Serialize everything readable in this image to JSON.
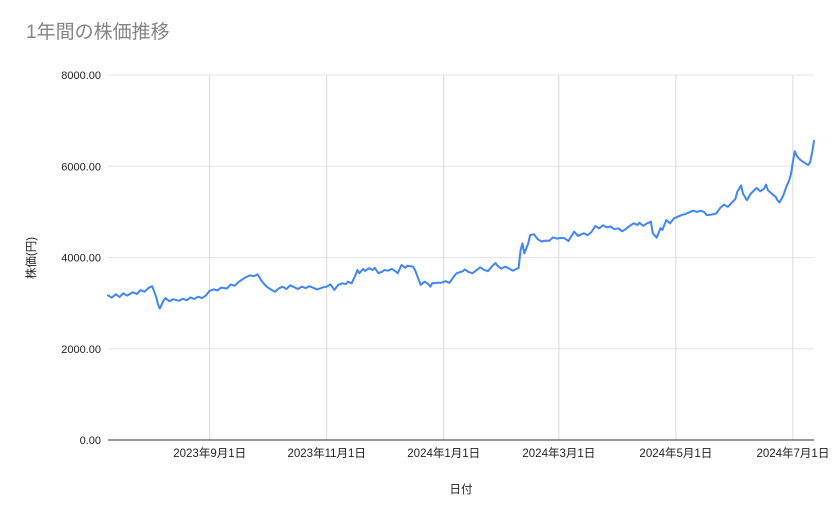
{
  "chart_data": {
    "type": "line",
    "title": "1年間の株価推移",
    "xlabel": "日付",
    "ylabel": "株価(円)",
    "legend": "none",
    "grid": "on",
    "x_domain": [
      0,
      368
    ],
    "y_domain": [
      0,
      8000
    ],
    "x_ticks": [
      {
        "d": 53,
        "label": "2023年9月1日"
      },
      {
        "d": 114,
        "label": "2023年11月1日"
      },
      {
        "d": 175,
        "label": "2024年1月1日"
      },
      {
        "d": 235,
        "label": "2024年3月1日"
      },
      {
        "d": 296,
        "label": "2024年5月1日"
      },
      {
        "d": 357,
        "label": "2024年7月1日"
      }
    ],
    "y_ticks": [
      {
        "v": 0,
        "label": "0.00"
      },
      {
        "v": 2000,
        "label": "2000.00"
      },
      {
        "v": 4000,
        "label": "4000.00"
      },
      {
        "v": 6000,
        "label": "6000.00"
      },
      {
        "v": 8000,
        "label": "8000.00"
      }
    ],
    "colors": {
      "line": "#4285f4",
      "grid": "#e6e6e6",
      "grid_vertical": "#dadada",
      "axis": "#333333",
      "tick_text": "#222222",
      "title_text": "#848484"
    },
    "points": [
      [
        0,
        3170
      ],
      [
        2,
        3120
      ],
      [
        4,
        3195
      ],
      [
        6,
        3135
      ],
      [
        8,
        3215
      ],
      [
        10,
        3165
      ],
      [
        13,
        3240
      ],
      [
        15,
        3200
      ],
      [
        17,
        3285
      ],
      [
        19,
        3250
      ],
      [
        21,
        3330
      ],
      [
        23,
        3370
      ],
      [
        25,
        3150
      ],
      [
        26,
        2980
      ],
      [
        27,
        2880
      ],
      [
        29,
        3060
      ],
      [
        30,
        3110
      ],
      [
        32,
        3040
      ],
      [
        34,
        3085
      ],
      [
        37,
        3050
      ],
      [
        39,
        3095
      ],
      [
        41,
        3065
      ],
      [
        43,
        3125
      ],
      [
        45,
        3090
      ],
      [
        47,
        3140
      ],
      [
        49,
        3110
      ],
      [
        51,
        3165
      ],
      [
        53,
        3270
      ],
      [
        55,
        3300
      ],
      [
        57,
        3280
      ],
      [
        59,
        3340
      ],
      [
        62,
        3320
      ],
      [
        64,
        3410
      ],
      [
        66,
        3380
      ],
      [
        68,
        3460
      ],
      [
        70,
        3520
      ],
      [
        72,
        3570
      ],
      [
        74,
        3610
      ],
      [
        76,
        3590
      ],
      [
        78,
        3630
      ],
      [
        80,
        3490
      ],
      [
        82,
        3390
      ],
      [
        84,
        3320
      ],
      [
        87,
        3250
      ],
      [
        89,
        3320
      ],
      [
        91,
        3360
      ],
      [
        93,
        3310
      ],
      [
        95,
        3390
      ],
      [
        97,
        3350
      ],
      [
        99,
        3310
      ],
      [
        101,
        3360
      ],
      [
        103,
        3330
      ],
      [
        105,
        3370
      ],
      [
        107,
        3335
      ],
      [
        109,
        3300
      ],
      [
        112,
        3345
      ],
      [
        114,
        3360
      ],
      [
        116,
        3410
      ],
      [
        118,
        3290
      ],
      [
        120,
        3400
      ],
      [
        122,
        3435
      ],
      [
        124,
        3415
      ],
      [
        125,
        3470
      ],
      [
        127,
        3435
      ],
      [
        129,
        3615
      ],
      [
        130,
        3725
      ],
      [
        131,
        3655
      ],
      [
        133,
        3750
      ],
      [
        134,
        3705
      ],
      [
        136,
        3765
      ],
      [
        138,
        3725
      ],
      [
        139,
        3775
      ],
      [
        141,
        3655
      ],
      [
        143,
        3690
      ],
      [
        144,
        3725
      ],
      [
        146,
        3710
      ],
      [
        148,
        3750
      ],
      [
        150,
        3690
      ],
      [
        151,
        3655
      ],
      [
        153,
        3835
      ],
      [
        155,
        3775
      ],
      [
        156,
        3820
      ],
      [
        159,
        3800
      ],
      [
        160,
        3725
      ],
      [
        162,
        3510
      ],
      [
        163,
        3400
      ],
      [
        165,
        3470
      ],
      [
        167,
        3415
      ],
      [
        168,
        3360
      ],
      [
        169,
        3435
      ],
      [
        172,
        3445
      ],
      [
        174,
        3450
      ],
      [
        176,
        3480
      ],
      [
        178,
        3445
      ],
      [
        181,
        3620
      ],
      [
        182,
        3660
      ],
      [
        185,
        3700
      ],
      [
        186,
        3740
      ],
      [
        188,
        3680
      ],
      [
        190,
        3655
      ],
      [
        192,
        3720
      ],
      [
        194,
        3785
      ],
      [
        196,
        3730
      ],
      [
        198,
        3700
      ],
      [
        200,
        3800
      ],
      [
        202,
        3880
      ],
      [
        203,
        3820
      ],
      [
        205,
        3755
      ],
      [
        207,
        3800
      ],
      [
        209,
        3760
      ],
      [
        211,
        3710
      ],
      [
        213,
        3750
      ],
      [
        214,
        3770
      ],
      [
        215,
        4150
      ],
      [
        216,
        4310
      ],
      [
        217,
        4090
      ],
      [
        219,
        4300
      ],
      [
        220,
        4490
      ],
      [
        222,
        4510
      ],
      [
        224,
        4400
      ],
      [
        226,
        4350
      ],
      [
        228,
        4370
      ],
      [
        230,
        4365
      ],
      [
        232,
        4440
      ],
      [
        234,
        4415
      ],
      [
        236,
        4430
      ],
      [
        238,
        4420
      ],
      [
        240,
        4360
      ],
      [
        242,
        4500
      ],
      [
        243,
        4565
      ],
      [
        245,
        4475
      ],
      [
        248,
        4530
      ],
      [
        250,
        4490
      ],
      [
        252,
        4560
      ],
      [
        254,
        4690
      ],
      [
        256,
        4640
      ],
      [
        258,
        4705
      ],
      [
        260,
        4660
      ],
      [
        262,
        4680
      ],
      [
        264,
        4620
      ],
      [
        266,
        4640
      ],
      [
        268,
        4575
      ],
      [
        270,
        4630
      ],
      [
        272,
        4695
      ],
      [
        274,
        4750
      ],
      [
        276,
        4715
      ],
      [
        277,
        4760
      ],
      [
        279,
        4695
      ],
      [
        281,
        4750
      ],
      [
        283,
        4785
      ],
      [
        284,
        4530
      ],
      [
        286,
        4435
      ],
      [
        288,
        4645
      ],
      [
        289,
        4605
      ],
      [
        291,
        4820
      ],
      [
        293,
        4750
      ],
      [
        295,
        4860
      ],
      [
        297,
        4895
      ],
      [
        299,
        4930
      ],
      [
        301,
        4955
      ],
      [
        303,
        4990
      ],
      [
        305,
        5025
      ],
      [
        307,
        5000
      ],
      [
        309,
        5025
      ],
      [
        311,
        4990
      ],
      [
        312,
        4930
      ],
      [
        314,
        4935
      ],
      [
        317,
        4965
      ],
      [
        319,
        5080
      ],
      [
        321,
        5160
      ],
      [
        323,
        5110
      ],
      [
        325,
        5195
      ],
      [
        327,
        5280
      ],
      [
        328,
        5440
      ],
      [
        330,
        5580
      ],
      [
        331,
        5400
      ],
      [
        333,
        5255
      ],
      [
        335,
        5400
      ],
      [
        337,
        5480
      ],
      [
        338,
        5525
      ],
      [
        340,
        5450
      ],
      [
        342,
        5510
      ],
      [
        343,
        5595
      ],
      [
        344,
        5470
      ],
      [
        346,
        5400
      ],
      [
        348,
        5330
      ],
      [
        349,
        5255
      ],
      [
        350,
        5205
      ],
      [
        352,
        5360
      ],
      [
        353,
        5480
      ],
      [
        354,
        5590
      ],
      [
        355,
        5690
      ],
      [
        356,
        5830
      ],
      [
        357,
        6100
      ],
      [
        358,
        6330
      ],
      [
        359,
        6230
      ],
      [
        360,
        6175
      ],
      [
        361,
        6135
      ],
      [
        362,
        6105
      ],
      [
        363,
        6080
      ],
      [
        364,
        6050
      ],
      [
        365,
        6030
      ],
      [
        366,
        6090
      ],
      [
        367,
        6300
      ],
      [
        368,
        6560
      ]
    ]
  }
}
